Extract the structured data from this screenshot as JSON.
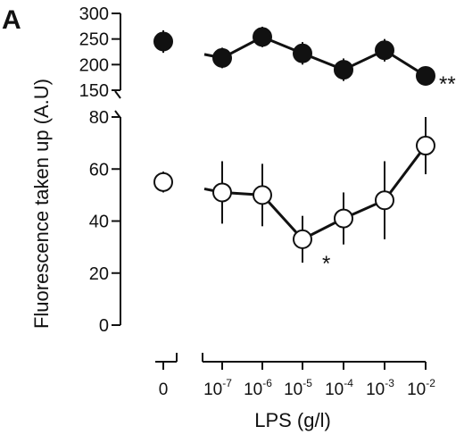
{
  "panel_label": "A",
  "chart_data": {
    "type": "line",
    "ylabel": "Fluorescence taken up (A.U)",
    "xlabel": "LPS (g/l)",
    "x_tick_labels": [
      {
        "base": "0",
        "exp": ""
      },
      {
        "base": "10",
        "exp": "-7"
      },
      {
        "base": "10",
        "exp": "-6"
      },
      {
        "base": "10",
        "exp": "-5"
      },
      {
        "base": "10",
        "exp": "-4"
      },
      {
        "base": "10",
        "exp": "-3"
      },
      {
        "base": "10",
        "exp": "-2"
      }
    ],
    "x_categories": [
      "0",
      "10^-7",
      "10^-6",
      "10^-5",
      "10^-4",
      "10^-3",
      "10^-2"
    ],
    "axis_break": true,
    "upper_axis": {
      "ylim": [
        150,
        300
      ],
      "ticks": [
        150,
        200,
        250,
        300
      ]
    },
    "lower_axis": {
      "ylim": [
        0,
        80
      ],
      "ticks": [
        0,
        20,
        40,
        60,
        80
      ]
    },
    "series": [
      {
        "marker": "filled-circle",
        "axis": "upper",
        "points": [
          {
            "x": "0",
            "y": 245,
            "err": 22
          },
          {
            "x": "10^-7",
            "y": 213,
            "err": 20
          },
          {
            "x": "10^-6",
            "y": 254,
            "err": 20
          },
          {
            "x": "10^-5",
            "y": 222,
            "err": 22
          },
          {
            "x": "10^-4",
            "y": 190,
            "err": 22
          },
          {
            "x": "10^-3",
            "y": 228,
            "err": 22
          },
          {
            "x": "10^-2",
            "y": 178,
            "err": 10
          }
        ],
        "significance": {
          "x": "10^-2",
          "label": "**"
        }
      },
      {
        "marker": "open-circle",
        "axis": "lower",
        "points": [
          {
            "x": "0",
            "y": 55,
            "err": 4
          },
          {
            "x": "10^-7",
            "y": 51,
            "err": 12
          },
          {
            "x": "10^-6",
            "y": 50,
            "err": 12
          },
          {
            "x": "10^-5",
            "y": 33,
            "err": 9
          },
          {
            "x": "10^-4",
            "y": 41,
            "err": 10
          },
          {
            "x": "10^-3",
            "y": 48,
            "err": 15
          },
          {
            "x": "10^-2",
            "y": 69,
            "err": 11
          }
        ],
        "significance": {
          "x": "10^-5",
          "label": "*"
        }
      }
    ]
  }
}
